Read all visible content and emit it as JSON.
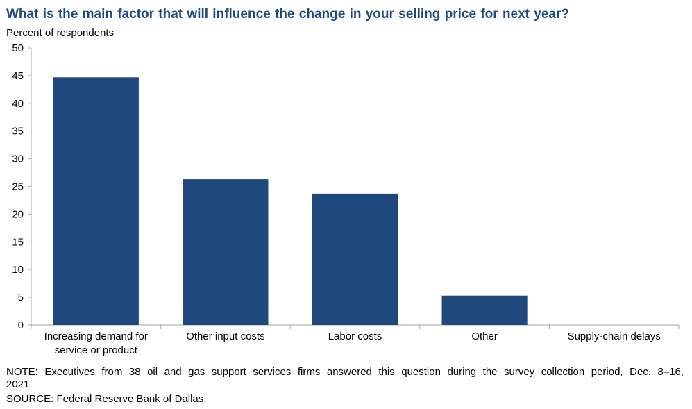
{
  "chart_data": {
    "type": "bar",
    "title": "What is the main factor that will influence the change in your selling price for next year?",
    "ylabel": "Percent of respondents",
    "xlabel": "",
    "categories": [
      [
        "Increasing demand for",
        "service or product"
      ],
      [
        "Other input costs"
      ],
      [
        "Labor costs"
      ],
      [
        "Other"
      ],
      [
        "Supply-chain delays"
      ]
    ],
    "values": [
      44.7,
      26.3,
      23.7,
      5.3,
      0
    ],
    "ylim": [
      0,
      50
    ],
    "yticks": [
      0,
      5,
      10,
      15,
      20,
      25,
      30,
      35,
      40,
      45,
      50
    ],
    "grid": false,
    "bar_color": "#1f497d",
    "legend": "none"
  },
  "footer": {
    "note": "NOTE: Executives from 38 oil and gas support services firms answered this question during the survey collection period, Dec. 8–16, 2021.",
    "source": "SOURCE: Federal Reserve Bank of Dallas."
  },
  "colors": {
    "title": "#1f497d",
    "bar": "#1f497d",
    "axis": "#a6a6a6"
  }
}
